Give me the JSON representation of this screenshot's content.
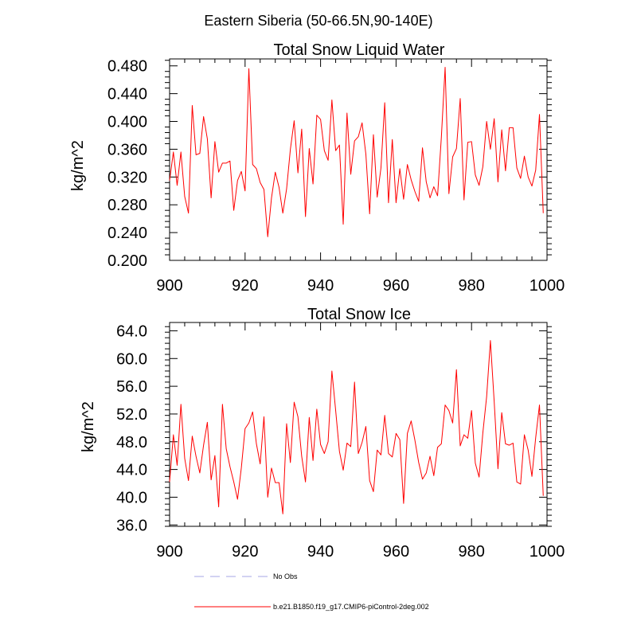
{
  "figure_title": "Eastern Siberia (50-66.5N,90-140E)",
  "chart_data": [
    {
      "type": "line",
      "title": "Total Snow Liquid Water",
      "xlabel": "",
      "ylabel": "kg/m^2",
      "xlim": [
        900,
        1000
      ],
      "ylim": [
        0.2,
        0.49
      ],
      "xticks": [
        900,
        920,
        940,
        960,
        980,
        1000
      ],
      "xtick_labels": [
        "900",
        "920",
        "940",
        "960",
        "980",
        "1000"
      ],
      "yticks": [
        0.2,
        0.24,
        0.28,
        0.32,
        0.36,
        0.4,
        0.44,
        0.48
      ],
      "ytick_labels": [
        "0.200",
        "0.240",
        "0.280",
        "0.320",
        "0.360",
        "0.400",
        "0.440",
        "0.480"
      ],
      "series": [
        {
          "name": "b.e21.B1850.f19_g17.CMIP6-piControl-2deg.002",
          "color": "#ff0000",
          "x_start": 900,
          "values": [
            0.315,
            0.356,
            0.308,
            0.356,
            0.292,
            0.268,
            0.423,
            0.352,
            0.354,
            0.407,
            0.375,
            0.29,
            0.371,
            0.327,
            0.34,
            0.34,
            0.343,
            0.272,
            0.315,
            0.328,
            0.3,
            0.476,
            0.338,
            0.332,
            0.312,
            0.302,
            0.234,
            0.29,
            0.327,
            0.305,
            0.268,
            0.303,
            0.36,
            0.401,
            0.326,
            0.389,
            0.263,
            0.361,
            0.31,
            0.409,
            0.403,
            0.358,
            0.344,
            0.431,
            0.358,
            0.366,
            0.252,
            0.412,
            0.324,
            0.372,
            0.378,
            0.398,
            0.353,
            0.267,
            0.381,
            0.291,
            0.333,
            0.427,
            0.283,
            0.374,
            0.283,
            0.332,
            0.288,
            0.338,
            0.316,
            0.299,
            0.285,
            0.362,
            0.313,
            0.29,
            0.306,
            0.293,
            0.377,
            0.478,
            0.296,
            0.349,
            0.361,
            0.433,
            0.287,
            0.37,
            0.371,
            0.323,
            0.308,
            0.335,
            0.4,
            0.36,
            0.404,
            0.313,
            0.388,
            0.329,
            0.391,
            0.391,
            0.333,
            0.318,
            0.35,
            0.32,
            0.307,
            0.33,
            0.41,
            0.268
          ]
        }
      ]
    },
    {
      "type": "line",
      "title": "Total Snow Ice",
      "xlabel": "",
      "ylabel": "kg/m^2",
      "xlim": [
        900,
        1000
      ],
      "ylim": [
        35.8,
        65.2
      ],
      "xticks": [
        900,
        920,
        940,
        960,
        980,
        1000
      ],
      "xtick_labels": [
        "900",
        "920",
        "940",
        "960",
        "980",
        "1000"
      ],
      "yticks": [
        36,
        40,
        44,
        48,
        52,
        56,
        60,
        64
      ],
      "ytick_labels": [
        "36.0",
        "40.0",
        "44.0",
        "48.0",
        "52.0",
        "56.0",
        "60.0",
        "64.0"
      ],
      "series": [
        {
          "name": "b.e21.B1850.f19_g17.CMIP6-piControl-2deg.002",
          "color": "#ff0000",
          "x_start": 900,
          "values": [
            42.2,
            49.0,
            44.6,
            53.4,
            45.6,
            42.4,
            48.8,
            45.9,
            43.5,
            47.5,
            50.8,
            42.5,
            46.0,
            38.6,
            53.4,
            47.0,
            44.4,
            42.2,
            39.7,
            44.2,
            49.9,
            50.7,
            52.3,
            47.7,
            44.8,
            51.6,
            40.0,
            44.2,
            42.1,
            42.1,
            37.6,
            50.6,
            45.0,
            53.7,
            51.6,
            45.9,
            42.2,
            51.5,
            45.3,
            52.7,
            47.6,
            46.3,
            48.0,
            58.2,
            52.5,
            46.6,
            43.9,
            47.8,
            47.3,
            56.6,
            46.3,
            47.9,
            50.2,
            42.4,
            40.8,
            46.8,
            46.1,
            51.8,
            46.3,
            45.8,
            49.2,
            48.3,
            39.1,
            49.2,
            51.0,
            48.2,
            45.0,
            42.6,
            43.5,
            45.9,
            43.1,
            47.2,
            47.7,
            53.3,
            52.5,
            50.7,
            58.4,
            47.4,
            49.0,
            48.5,
            52.5,
            44.9,
            42.9,
            49.3,
            54.5,
            62.6,
            53.8,
            44.1,
            52.2,
            47.7,
            47.5,
            47.8,
            42.2,
            41.9,
            49.0,
            46.8,
            43.0,
            48.6,
            53.3,
            40.2
          ]
        }
      ]
    }
  ],
  "legend": [
    {
      "label": "No Obs",
      "color": "#a6a6e6",
      "style": "dashed"
    },
    {
      "label": "b.e21.B1850.f19_g17.CMIP6-piControl-2deg.002",
      "color": "#ff0000",
      "style": "solid"
    }
  ]
}
